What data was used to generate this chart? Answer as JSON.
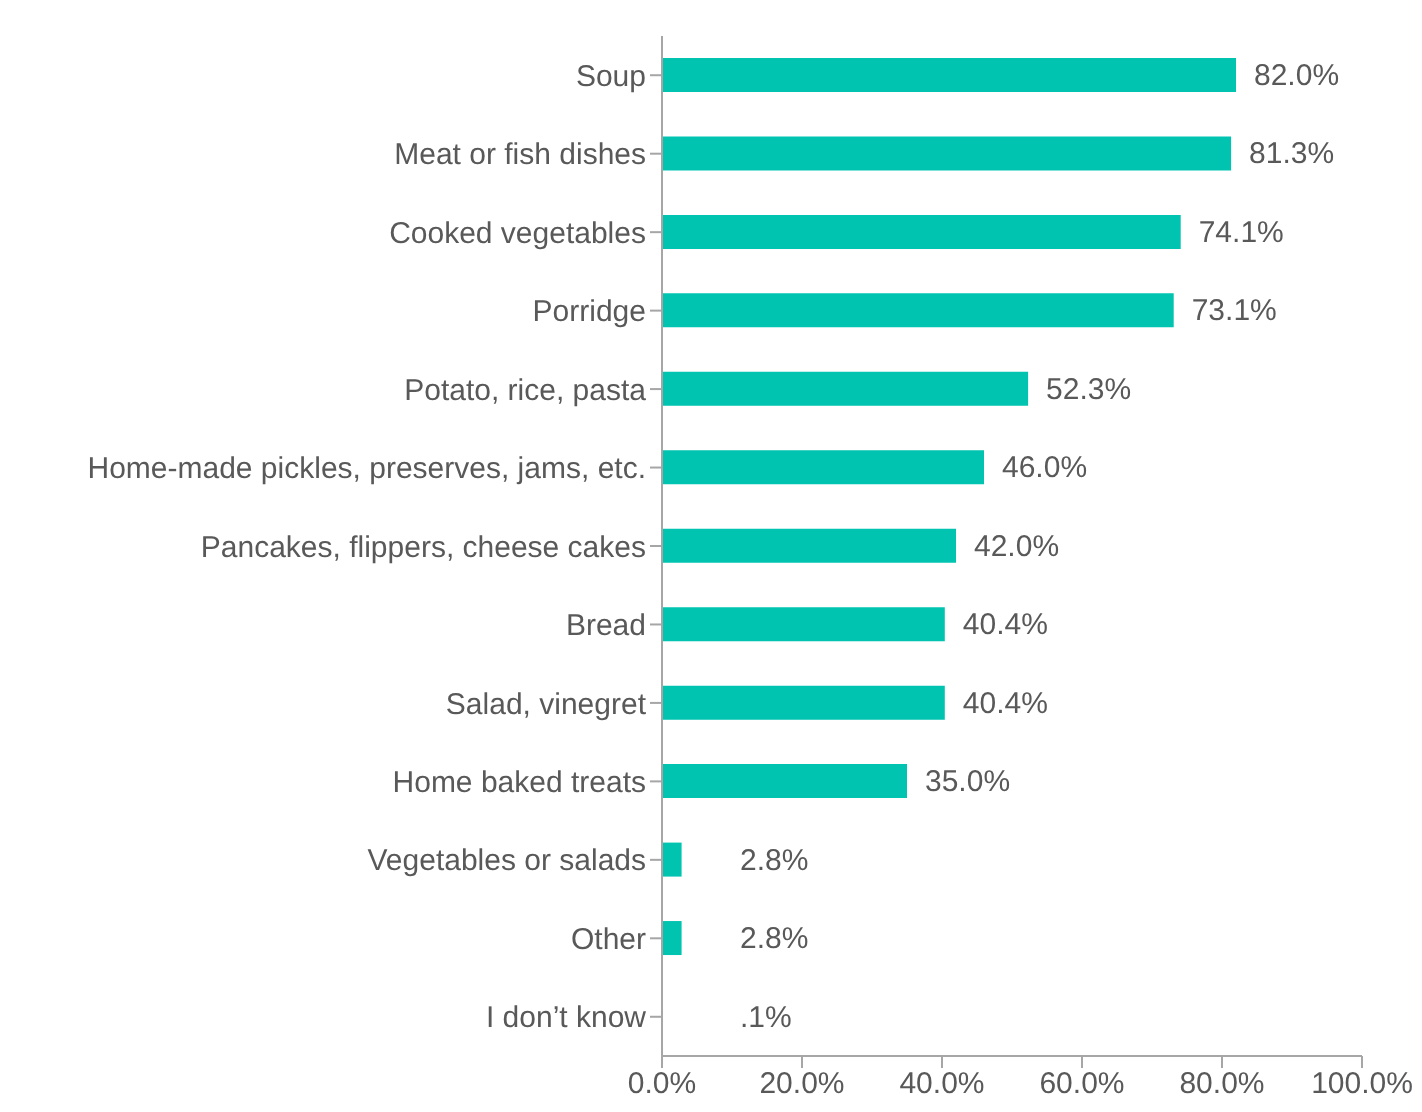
{
  "chart_data": {
    "type": "bar",
    "orientation": "horizontal",
    "categories": [
      "Soup",
      "Meat or fish dishes",
      "Cooked vegetables",
      "Porridge",
      "Potato, rice, pasta",
      "Home-made pickles, preserves, jams, etc.",
      "Pancakes, flippers, cheese cakes",
      "Bread",
      "Salad, vinegret",
      "Home baked treats",
      "Vegetables or salads",
      "Other",
      "I don’t know"
    ],
    "values": [
      82.0,
      81.3,
      74.1,
      73.1,
      52.3,
      46.0,
      42.0,
      40.4,
      40.4,
      35.0,
      2.8,
      2.8,
      0.1
    ],
    "value_labels": [
      "82.0%",
      "81.3%",
      "74.1%",
      "73.1%",
      "52.3%",
      "46.0%",
      "42.0%",
      "40.4%",
      "40.4%",
      "35.0%",
      "2.8%",
      "2.8%",
      ".1%"
    ],
    "color": "#00c4b0",
    "xlim": [
      0,
      100
    ],
    "xticks": [
      {
        "value": 0,
        "label": "0.0%"
      },
      {
        "value": 20,
        "label": "20.0%"
      },
      {
        "value": 40,
        "label": "40.0%"
      },
      {
        "value": 60,
        "label": "60.0%"
      },
      {
        "value": 80,
        "label": "80.0%"
      },
      {
        "value": 100,
        "label": "100.0%"
      }
    ]
  }
}
